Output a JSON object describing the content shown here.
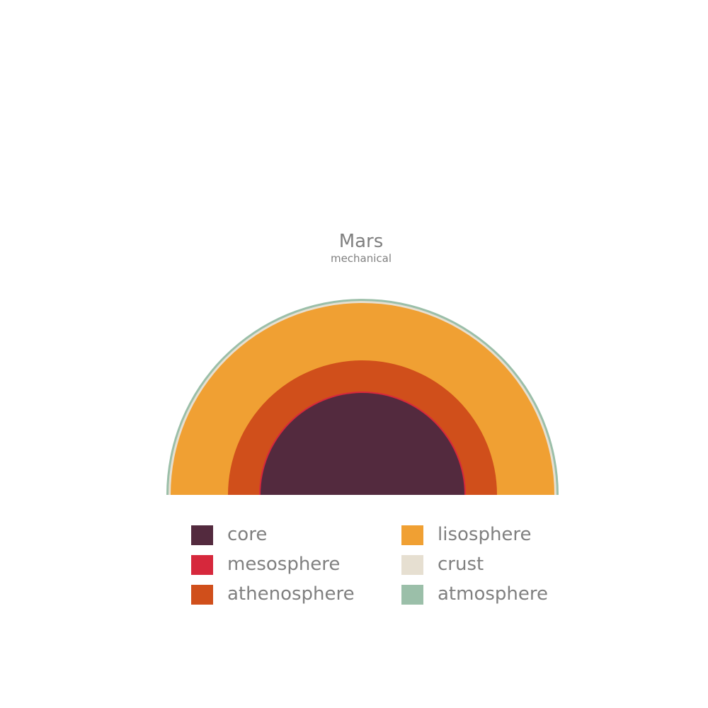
{
  "header": {
    "title": "Mars",
    "subtitle": "mechanical"
  },
  "layers": [
    {
      "key": "core",
      "label": "core",
      "color": "#532a3e"
    },
    {
      "key": "mesosphere",
      "label": "mesosphere",
      "color": "#d6283c"
    },
    {
      "key": "athenosphere",
      "label": "athenosphere",
      "color": "#d04f1b"
    },
    {
      "key": "lisosphere",
      "label": "lisosphere",
      "color": "#f0a033"
    },
    {
      "key": "crust",
      "label": "crust",
      "color": "#e6dfd1"
    },
    {
      "key": "atmosphere",
      "label": "atmosphere",
      "color": "#9bbfa9"
    }
  ]
}
